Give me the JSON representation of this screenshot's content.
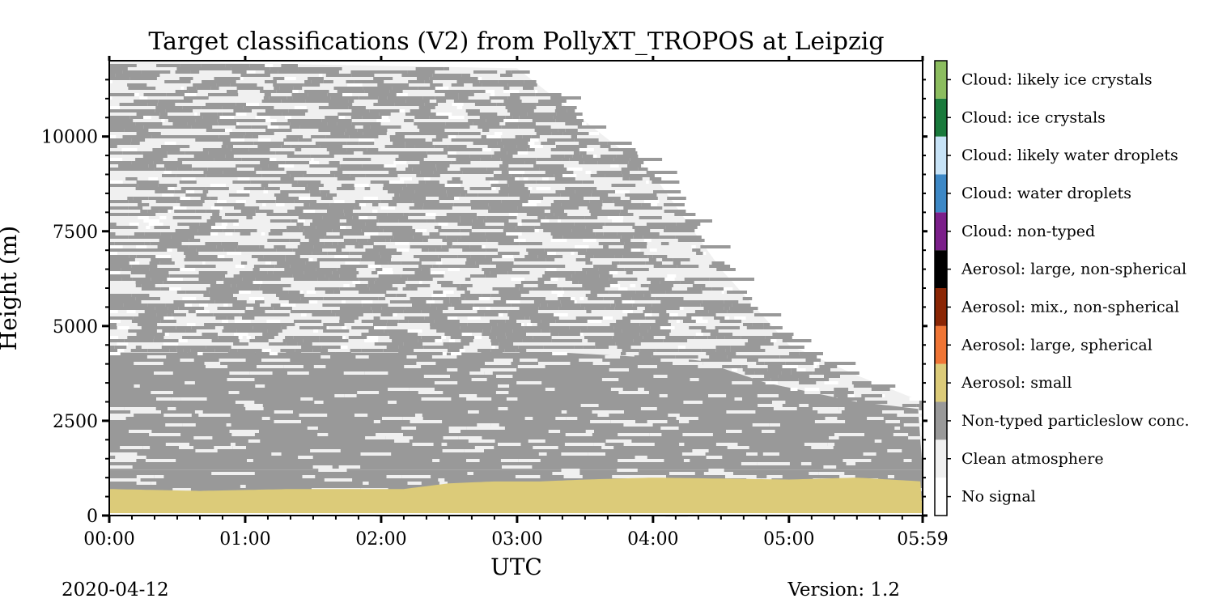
{
  "chart_data": {
    "type": "heatmap",
    "title": "Target classifications (V2) from PollyXT_TROPOS at Leipzig",
    "xlabel": "UTC",
    "ylabel": "Height (m)",
    "x_ticks": [
      "00:00",
      "01:00",
      "02:00",
      "03:00",
      "04:00",
      "05:00",
      "05:59"
    ],
    "x_tick_minutes": [
      0,
      60,
      120,
      180,
      240,
      300,
      359
    ],
    "xlim_minutes": [
      0,
      359
    ],
    "y_ticks": [
      0,
      2500,
      5000,
      7500,
      10000
    ],
    "ylim": [
      0,
      12000
    ],
    "colorbar": {
      "categories": [
        {
          "label": "No signal",
          "color": "#ffffff"
        },
        {
          "label": "Clean atmosphere",
          "color": "#f0f0f0"
        },
        {
          "label": "Non-typed particleslow conc.",
          "color": "#999999"
        },
        {
          "label": "Aerosol: small",
          "color": "#dccb79"
        },
        {
          "label": "Aerosol: large, spherical",
          "color": "#ef7535"
        },
        {
          "label": "Aerosol: mix., non-spherical",
          "color": "#8b2605"
        },
        {
          "label": "Aerosol: large, non-spherical",
          "color": "#000000"
        },
        {
          "label": "Cloud: non-typed",
          "color": "#7b1f8a"
        },
        {
          "label": "Cloud: water droplets",
          "color": "#3d88c6"
        },
        {
          "label": "Cloud: likely water droplets",
          "color": "#c7e3f7"
        },
        {
          "label": "Cloud: ice crystals",
          "color": "#1a7a3c"
        },
        {
          "label": "Cloud: likely ice crystals",
          "color": "#8cbd5f"
        }
      ]
    },
    "aerosol_small_top_m": [
      {
        "t": 0,
        "h": 700
      },
      {
        "t": 40,
        "h": 650
      },
      {
        "t": 80,
        "h": 700
      },
      {
        "t": 120,
        "h": 700
      },
      {
        "t": 130,
        "h": 700
      },
      {
        "t": 150,
        "h": 850
      },
      {
        "t": 170,
        "h": 900
      },
      {
        "t": 190,
        "h": 900
      },
      {
        "t": 210,
        "h": 950
      },
      {
        "t": 240,
        "h": 1000
      },
      {
        "t": 300,
        "h": 950
      },
      {
        "t": 330,
        "h": 1000
      },
      {
        "t": 359,
        "h": 900
      }
    ],
    "non_typed_top_m": [
      {
        "t": 0,
        "h": 12000
      },
      {
        "t": 180,
        "h": 11800
      },
      {
        "t": 240,
        "h": 9000
      },
      {
        "t": 270,
        "h": 6500
      },
      {
        "t": 300,
        "h": 4500
      },
      {
        "t": 330,
        "h": 3700
      },
      {
        "t": 359,
        "h": 3000
      }
    ],
    "dense_top_m": [
      {
        "t": 0,
        "h": 4300
      },
      {
        "t": 200,
        "h": 4300
      },
      {
        "t": 260,
        "h": 4100
      },
      {
        "t": 290,
        "h": 3500
      },
      {
        "t": 330,
        "h": 3000
      },
      {
        "t": 359,
        "h": 2800
      }
    ],
    "dense_bottom_m": 1200
  },
  "footer": {
    "date": "2020-04-12",
    "version": "Version: 1.2"
  }
}
